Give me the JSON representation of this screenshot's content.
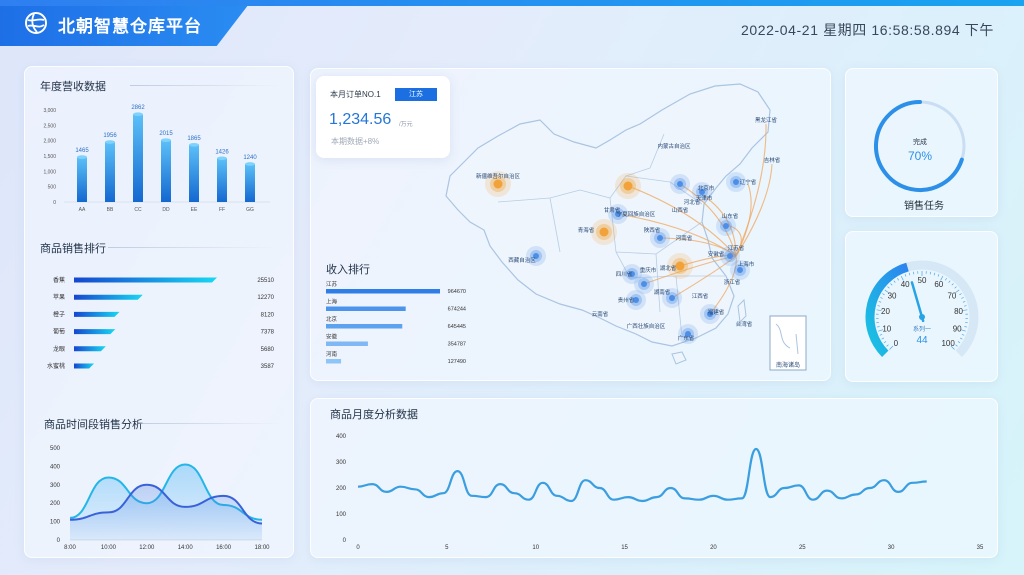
{
  "header": {
    "title": "北朝智慧仓库平台",
    "datetime": "2022-04-21 星期四 16:58:58.894 下午"
  },
  "colors": {
    "primary": "#1e6fe6",
    "accent": "#1f8fe8",
    "orange": "#f0a030"
  },
  "annual_revenue": {
    "title": "年度营收数据",
    "chart_data": {
      "type": "bar",
      "categories": [
        "AA",
        "BB",
        "CC",
        "DD",
        "EE",
        "FF",
        "GG"
      ],
      "values": [
        1465,
        1956,
        2862,
        2015,
        1865,
        1426,
        1240
      ],
      "yticks": [
        "0",
        "500",
        "1,000",
        "1,500",
        "2,000",
        "2,500",
        "3,000"
      ],
      "ylim": [
        0,
        3000
      ]
    }
  },
  "sales_ranking": {
    "title": "商品销售排行",
    "chart_data": {
      "type": "bar",
      "orientation": "horizontal",
      "categories": [
        "香蕉",
        "苹果",
        "橙子",
        "葡萄",
        "龙眼",
        "水蜜桃"
      ],
      "values": [
        25510,
        12270,
        8120,
        7378,
        5680,
        3587
      ]
    }
  },
  "time_sales": {
    "title": "商品时间段销售分析",
    "chart_data": {
      "type": "area",
      "x": [
        "8:00",
        "10:00",
        "12:00",
        "14:00",
        "16:00",
        "18:00"
      ],
      "yticks": [
        "0",
        "100",
        "200",
        "300",
        "400",
        "500"
      ],
      "ylim": [
        0,
        500
      ],
      "series": [
        {
          "values": [
            120,
            340,
            200,
            410,
            190,
            110
          ]
        },
        {
          "values": [
            110,
            150,
            300,
            180,
            240,
            90
          ]
        }
      ]
    }
  },
  "map": {
    "order_label": "本月订单NO.1",
    "order_badge": "江苏",
    "order_value": "1,234.56",
    "order_unit": "/万元",
    "order_growth": "本期数据+8%",
    "island_label": "南海诸岛",
    "provinces": [
      "内蒙古自治区",
      "黑龙江省",
      "吉林省",
      "辽宁省",
      "北京市",
      "天津市",
      "河北省",
      "山西省",
      "宁夏回族自治区",
      "甘肃省",
      "青海省",
      "陕西省",
      "新疆维吾尔自治区",
      "西藏自治区",
      "山东省",
      "河南省",
      "江苏省",
      "安徽省",
      "上海市",
      "湖北省",
      "四川省",
      "重庆市",
      "浙江省",
      "贵州省",
      "湖南省",
      "江西省",
      "福建省",
      "云南省",
      "广西壮族自治区",
      "广东省",
      "台湾省"
    ]
  },
  "income_ranking": {
    "title": "收入排行",
    "chart_data": {
      "type": "bar",
      "orientation": "horizontal",
      "categories": [
        "江苏",
        "上海",
        "北京",
        "安徽",
        "河南"
      ],
      "values": [
        964670,
        674244,
        645445,
        354787,
        127490
      ]
    }
  },
  "sales_task": {
    "label": "完成",
    "value": "70%",
    "percent": 70,
    "title": "销售任务"
  },
  "gauge": {
    "ticks": [
      "0",
      "10",
      "20",
      "30",
      "40",
      "50",
      "60",
      "70",
      "80",
      "90",
      "100"
    ],
    "series_name": "系列一",
    "value": "44",
    "numeric": 44
  },
  "monthly": {
    "title": "商品月度分析数据",
    "chart_data": {
      "type": "line",
      "xticks": [
        "0",
        "5",
        "10",
        "15",
        "20",
        "25",
        "30",
        "35"
      ],
      "yticks": [
        "0",
        "100",
        "200",
        "300",
        "400"
      ],
      "ylim": [
        0,
        400
      ],
      "xlim": [
        0,
        35
      ],
      "values": [
        205,
        215,
        185,
        205,
        195,
        165,
        180,
        265,
        170,
        165,
        215,
        180,
        155,
        220,
        170,
        150,
        230,
        200,
        155,
        165,
        150,
        165,
        200,
        160,
        155,
        170,
        155,
        160,
        350,
        165,
        200,
        210,
        155,
        190,
        160,
        175,
        200,
        230,
        185,
        220,
        225
      ]
    }
  }
}
